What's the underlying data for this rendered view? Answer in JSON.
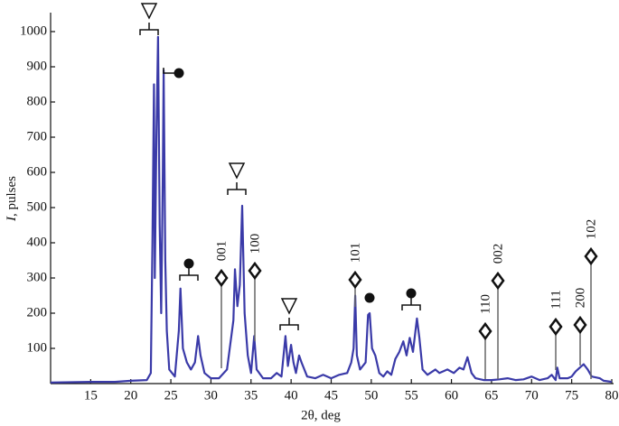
{
  "chart_data": {
    "type": "line",
    "x_label": "2θ, deg",
    "y_label": {
      "symbol": "I",
      "text": ", pulses"
    },
    "xlim": [
      10,
      80
    ],
    "ylim": [
      0,
      1050
    ],
    "xticks": [
      15,
      20,
      25,
      30,
      35,
      40,
      45,
      50,
      55,
      60,
      65,
      70,
      75,
      80
    ],
    "yticks": [
      100,
      200,
      300,
      400,
      500,
      600,
      700,
      800,
      900,
      1000
    ],
    "color": "#3a3aa8",
    "x": [
      10,
      15,
      18,
      20,
      22,
      22.5,
      22.7,
      22.9,
      23.0,
      23.2,
      23.4,
      23.6,
      23.8,
      24.0,
      24.1,
      24.3,
      24.5,
      24.8,
      25.5,
      26.0,
      26.2,
      26.5,
      27.0,
      27.5,
      28.0,
      28.4,
      28.7,
      29.2,
      30,
      31,
      32,
      32.8,
      33.0,
      33.3,
      33.6,
      33.9,
      34.2,
      34.6,
      35.0,
      35.4,
      35.7,
      36.5,
      37.5,
      38.2,
      38.8,
      39.3,
      39.6,
      40.0,
      40.3,
      40.6,
      41.0,
      41.3,
      42,
      43,
      44,
      45,
      46,
      47,
      47.5,
      47.8,
      48.0,
      48.2,
      48.6,
      49.3,
      49.6,
      49.8,
      50.1,
      50.5,
      51,
      51.5,
      52,
      52.5,
      53.0,
      53.5,
      54,
      54.4,
      54.8,
      55.2,
      55.7,
      56.0,
      56.4,
      57,
      58,
      58.5,
      59.5,
      60.3,
      61,
      61.5,
      62.0,
      62.5,
      63,
      64,
      65,
      66,
      67,
      68,
      69,
      70,
      71,
      72,
      72.5,
      73,
      73.2,
      73.5,
      74.5,
      75,
      75.5,
      76,
      76.5,
      77,
      77.5,
      78.5,
      79,
      80
    ],
    "y": [
      3,
      5,
      5,
      8,
      10,
      30,
      400,
      850,
      300,
      700,
      985,
      450,
      200,
      600,
      890,
      350,
      150,
      40,
      20,
      150,
      270,
      100,
      60,
      40,
      60,
      135,
      80,
      30,
      15,
      15,
      40,
      180,
      325,
      220,
      280,
      505,
      200,
      80,
      30,
      135,
      40,
      15,
      15,
      30,
      20,
      135,
      50,
      110,
      60,
      30,
      80,
      60,
      20,
      15,
      25,
      15,
      25,
      30,
      60,
      100,
      250,
      80,
      40,
      60,
      195,
      200,
      100,
      80,
      30,
      20,
      35,
      25,
      70,
      90,
      120,
      80,
      130,
      90,
      185,
      130,
      40,
      25,
      40,
      30,
      40,
      30,
      45,
      40,
      75,
      30,
      15,
      10,
      10,
      12,
      15,
      10,
      12,
      20,
      10,
      15,
      25,
      10,
      45,
      15,
      15,
      20,
      35,
      45,
      55,
      40,
      20,
      15,
      8,
      5
    ],
    "hkl_labels": [
      "001",
      "100",
      "101",
      "110",
      "002",
      "111",
      "200",
      "102"
    ]
  }
}
